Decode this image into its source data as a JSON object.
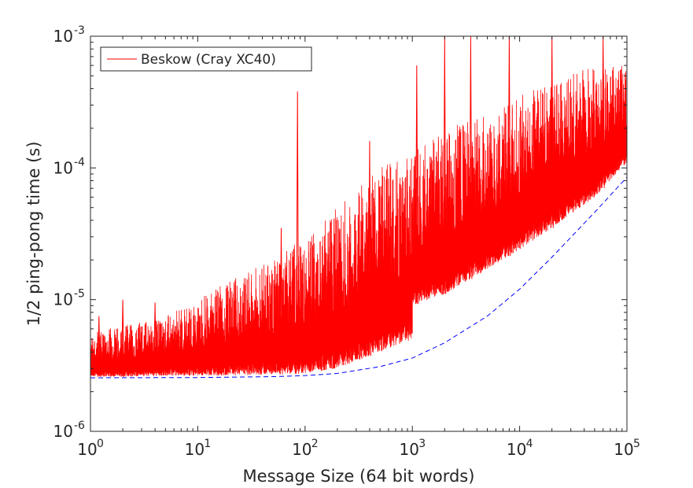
{
  "chart_data": {
    "type": "line",
    "title": "",
    "xlabel": "Message Size (64 bit words)",
    "ylabel": "1/2 ping-pong time (s)",
    "xscale": "log",
    "yscale": "log",
    "xlim": [
      1,
      100000
    ],
    "ylim": [
      1e-06,
      0.001
    ],
    "grid": false,
    "legend_position": "top-left",
    "x_ticks": [
      {
        "base": "10",
        "exp": "0",
        "value": 1
      },
      {
        "base": "10",
        "exp": "1",
        "value": 10
      },
      {
        "base": "10",
        "exp": "2",
        "value": 100
      },
      {
        "base": "10",
        "exp": "3",
        "value": 1000
      },
      {
        "base": "10",
        "exp": "4",
        "value": 10000
      },
      {
        "base": "10",
        "exp": "5",
        "value": 100000
      }
    ],
    "y_ticks": [
      {
        "base": "10",
        "exp": "-6",
        "value": 1e-06
      },
      {
        "base": "10",
        "exp": "-5",
        "value": 1e-05
      },
      {
        "base": "10",
        "exp": "-4",
        "value": 0.0001
      },
      {
        "base": "10",
        "exp": "-3",
        "value": 0.001
      }
    ],
    "series": [
      {
        "name": "Beskow (Cray XC40)",
        "color": "#ff0000",
        "style": "solid",
        "x": [
          1,
          2,
          5,
          10,
          20,
          50,
          100,
          200,
          500,
          1000,
          1000,
          2000,
          5000,
          10000,
          20000,
          50000,
          100000
        ],
        "y_min": [
          2.6e-06,
          2.6e-06,
          2.65e-06,
          2.65e-06,
          2.65e-06,
          2.7e-06,
          2.75e-06,
          3e-06,
          4e-06,
          5e-06,
          9e-06,
          1.1e-05,
          1.7e-05,
          2.4e-05,
          3.5e-05,
          6e-05,
          0.00011
        ],
        "y_typical_max": [
          5.5e-06,
          6.5e-06,
          7.5e-06,
          1e-05,
          1.4e-05,
          2e-05,
          3e-05,
          5e-05,
          0.0001,
          0.00013,
          0.00013,
          0.0002,
          0.00026,
          0.00035,
          0.00045,
          0.0006,
          0.0006
        ],
        "y_spikes": [
          [
            1.2,
            7.5e-06
          ],
          [
            2,
            1e-05
          ],
          [
            4,
            9.5e-06
          ],
          [
            60,
            3.5e-05
          ],
          [
            85,
            0.00038
          ],
          [
            400,
            0.00016
          ],
          [
            1100,
            0.0006
          ],
          [
            2000,
            0.001
          ],
          [
            3500,
            0.001
          ],
          [
            8000,
            0.001
          ],
          [
            20000,
            0.001
          ],
          [
            60000,
            0.001
          ]
        ]
      },
      {
        "name": "",
        "color": "#0000ff",
        "style": "dashed",
        "x": [
          1,
          10,
          50,
          100,
          200,
          500,
          1000,
          2000,
          5000,
          10000,
          20000,
          50000,
          100000
        ],
        "y": [
          2.55e-06,
          2.56e-06,
          2.6e-06,
          2.65e-06,
          2.75e-06,
          3.1e-06,
          3.6e-06,
          4.7e-06,
          7.5e-06,
          1.2e-05,
          2.1e-05,
          4.6e-05,
          8.5e-05
        ]
      }
    ]
  }
}
